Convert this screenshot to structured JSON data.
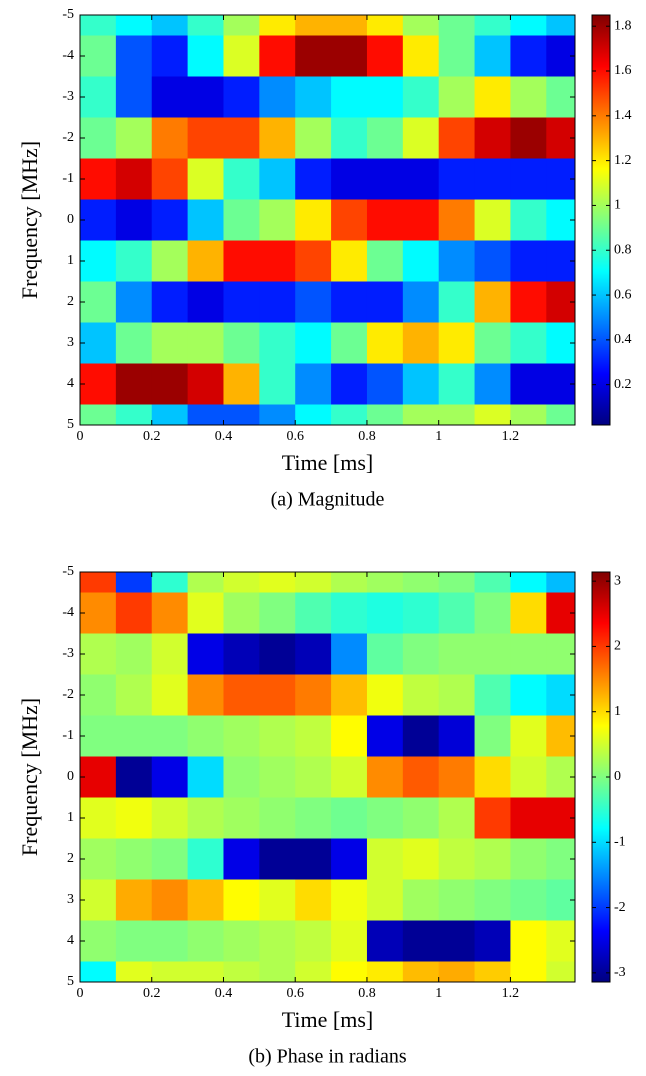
{
  "chart_data": [
    {
      "type": "heatmap",
      "colormap": "jet",
      "xlabel": "Time [ms]",
      "ylabel": "Frequency [MHz]",
      "caption": "(a) Magnitude",
      "x": [
        0.05,
        0.15,
        0.25,
        0.35,
        0.45,
        0.55,
        0.65,
        0.75,
        0.85,
        0.95,
        1.05,
        1.15,
        1.25,
        1.35
      ],
      "y": [
        -5,
        -4,
        -3,
        -2,
        -1,
        0,
        1,
        2,
        3,
        4,
        5
      ],
      "values": [
        [
          0.8,
          0.7,
          0.6,
          0.8,
          1.0,
          1.2,
          1.3,
          1.3,
          1.2,
          1.0,
          0.9,
          0.8,
          0.7,
          0.6
        ],
        [
          0.9,
          0.4,
          0.3,
          0.7,
          1.1,
          1.6,
          1.8,
          1.8,
          1.6,
          1.2,
          0.9,
          0.6,
          0.3,
          0.2
        ],
        [
          0.8,
          0.4,
          0.2,
          0.2,
          0.3,
          0.5,
          0.6,
          0.7,
          0.7,
          0.8,
          1.0,
          1.2,
          1.0,
          0.9
        ],
        [
          0.9,
          1.0,
          1.4,
          1.5,
          1.5,
          1.3,
          1.0,
          0.8,
          0.9,
          1.1,
          1.5,
          1.7,
          1.8,
          1.7
        ],
        [
          1.6,
          1.7,
          1.5,
          1.1,
          0.8,
          0.6,
          0.3,
          0.2,
          0.2,
          0.2,
          0.3,
          0.3,
          0.3,
          0.3
        ],
        [
          0.3,
          0.2,
          0.3,
          0.6,
          0.9,
          1.0,
          1.2,
          1.5,
          1.6,
          1.6,
          1.4,
          1.1,
          0.8,
          0.7
        ],
        [
          0.7,
          0.8,
          1.0,
          1.3,
          1.6,
          1.6,
          1.5,
          1.2,
          0.9,
          0.7,
          0.5,
          0.4,
          0.3,
          0.3
        ],
        [
          0.9,
          0.5,
          0.3,
          0.2,
          0.3,
          0.3,
          0.4,
          0.3,
          0.3,
          0.5,
          0.8,
          1.3,
          1.6,
          1.7
        ],
        [
          0.6,
          0.9,
          1.0,
          1.0,
          0.9,
          0.8,
          0.7,
          0.9,
          1.2,
          1.3,
          1.2,
          0.9,
          0.8,
          0.7
        ],
        [
          1.6,
          1.8,
          1.8,
          1.7,
          1.3,
          0.8,
          0.5,
          0.3,
          0.4,
          0.6,
          0.8,
          0.5,
          0.2,
          0.2
        ],
        [
          0.9,
          0.8,
          0.6,
          0.4,
          0.4,
          0.5,
          0.7,
          0.8,
          0.9,
          1.0,
          1.0,
          1.1,
          1.0,
          0.9
        ]
      ],
      "xlim": [
        0,
        1.38
      ],
      "xticks": [
        0,
        0.2,
        0.4,
        0.6,
        0.8,
        1,
        1.2
      ],
      "ylim": [
        5,
        -5
      ],
      "yticks": [
        -5,
        -4,
        -3,
        -2,
        -1,
        0,
        1,
        2,
        3,
        4,
        5
      ],
      "clim": [
        0.02,
        1.85
      ],
      "cticks": [
        0.2,
        0.4,
        0.6,
        0.8,
        1,
        1.2,
        1.4,
        1.6,
        1.8
      ]
    },
    {
      "type": "heatmap",
      "colormap": "jet",
      "xlabel": "Time [ms]",
      "ylabel": "Frequency [MHz]",
      "caption": "(b) Phase in radians",
      "x": [
        0.05,
        0.15,
        0.25,
        0.35,
        0.45,
        0.55,
        0.65,
        0.75,
        0.85,
        0.95,
        1.05,
        1.15,
        1.25,
        1.35
      ],
      "y": [
        -5,
        -4,
        -3,
        -2,
        -1,
        0,
        1,
        2,
        3,
        4,
        5
      ],
      "values": [
        [
          2,
          -2,
          -0.5,
          0.3,
          0.5,
          0.6,
          0.5,
          0.3,
          0.2,
          0.1,
          0,
          -0.3,
          -0.8,
          -1.2
        ],
        [
          1.5,
          2,
          1.5,
          0.6,
          0.2,
          0,
          -0.3,
          -0.5,
          -0.6,
          -0.5,
          -0.3,
          0,
          1,
          2.5
        ],
        [
          0.3,
          0.2,
          0.5,
          -2.5,
          -2.8,
          -3,
          -2.8,
          -1.5,
          -0.2,
          0,
          0.1,
          0.1,
          0.1,
          0.1
        ],
        [
          0.1,
          0.3,
          0.6,
          1.5,
          1.8,
          1.8,
          1.6,
          1.2,
          0.7,
          0.4,
          0.3,
          -0.3,
          -0.8,
          -1
        ],
        [
          0,
          0,
          0,
          0.1,
          0.2,
          0.3,
          0.4,
          0.8,
          -2.5,
          -3,
          -2.6,
          0,
          0.6,
          1.2
        ],
        [
          2.5,
          -3,
          -2.5,
          -1,
          0.1,
          0.2,
          0.3,
          0.5,
          1.5,
          1.8,
          1.6,
          1,
          0.5,
          0.3
        ],
        [
          0.6,
          0.7,
          0.5,
          0.3,
          0.2,
          0.1,
          0,
          -0.1,
          0,
          0.1,
          0.3,
          2,
          2.5,
          2.5
        ],
        [
          0.2,
          0.1,
          0,
          -0.5,
          -2.5,
          -3,
          -3,
          -2.5,
          0.5,
          0.6,
          0.4,
          0.3,
          0.1,
          0
        ],
        [
          0.5,
          1.3,
          1.5,
          1.2,
          0.8,
          0.6,
          1,
          0.7,
          0.5,
          0.2,
          0.1,
          0,
          -0.1,
          -0.2
        ],
        [
          0.1,
          0,
          0,
          0.1,
          0.2,
          0.3,
          0.4,
          0.6,
          -2.8,
          -3,
          -3,
          -2.8,
          0.8,
          0.6
        ],
        [
          -0.8,
          0.6,
          0.5,
          0.5,
          0.4,
          0.3,
          0.5,
          0.8,
          0.9,
          1.2,
          1.3,
          1.1,
          0.8,
          0.5
        ]
      ],
      "xlim": [
        0,
        1.38
      ],
      "xticks": [
        0,
        0.2,
        0.4,
        0.6,
        0.8,
        1,
        1.2
      ],
      "ylim": [
        5,
        -5
      ],
      "yticks": [
        -5,
        -4,
        -3,
        -2,
        -1,
        0,
        1,
        2,
        3,
        4,
        5
      ],
      "clim": [
        -3.14,
        3.14
      ],
      "cticks": [
        -3,
        -2,
        -1,
        0,
        1,
        2,
        3
      ]
    }
  ]
}
